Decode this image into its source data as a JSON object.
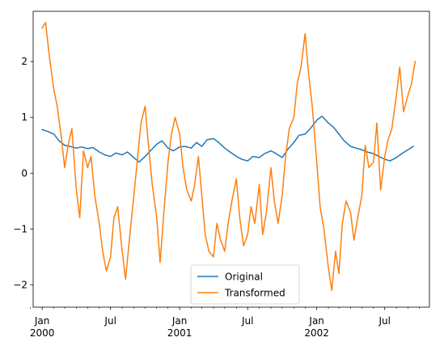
{
  "chart_data": {
    "type": "line",
    "title": "",
    "xlabel": "",
    "ylabel": "",
    "x_domain": [
      "1999-12-08",
      "2002-10-28"
    ],
    "ylim": [
      -2.4,
      2.9
    ],
    "grid": false,
    "legend_position": "lower center",
    "y_ticks": [
      -2,
      -1,
      0,
      1,
      2
    ],
    "y_tick_labels": [
      "−2",
      "−1",
      "0",
      "1",
      "2"
    ],
    "x_major_ticks": [
      {
        "date": "2000-01-01",
        "line1": "Jan",
        "line2": "2000"
      },
      {
        "date": "2000-07-01",
        "line1": "Jul",
        "line2": ""
      },
      {
        "date": "2001-01-01",
        "line1": "Jan",
        "line2": "2001"
      },
      {
        "date": "2001-07-01",
        "line1": "Jul",
        "line2": ""
      },
      {
        "date": "2002-01-01",
        "line1": "Jan",
        "line2": "2002"
      },
      {
        "date": "2002-07-01",
        "line1": "Jul",
        "line2": ""
      }
    ],
    "x_minor_ticks": [
      "1999-12-01",
      "2000-02-01",
      "2000-03-01",
      "2000-04-01",
      "2000-05-01",
      "2000-06-01",
      "2000-08-01",
      "2000-09-01",
      "2000-10-01",
      "2000-11-01",
      "2000-12-01",
      "2001-02-01",
      "2001-03-01",
      "2001-04-01",
      "2001-05-01",
      "2001-06-01",
      "2001-08-01",
      "2001-09-01",
      "2001-10-01",
      "2001-11-01",
      "2001-12-01",
      "2002-02-01",
      "2002-03-01",
      "2002-04-01",
      "2002-05-01",
      "2002-06-01",
      "2002-08-01",
      "2002-09-01",
      "2002-10-01"
    ],
    "series": [
      {
        "name": "Original",
        "color": "#1f77b4",
        "x": [
          "2000-01-01",
          "2000-01-15",
          "2000-02-01",
          "2000-02-15",
          "2000-03-01",
          "2000-03-15",
          "2000-04-01",
          "2000-04-15",
          "2000-05-01",
          "2000-05-15",
          "2000-06-01",
          "2000-06-15",
          "2000-07-01",
          "2000-07-15",
          "2000-08-01",
          "2000-08-15",
          "2000-09-01",
          "2000-09-15",
          "2000-10-01",
          "2000-10-15",
          "2000-11-01",
          "2000-11-15",
          "2000-12-01",
          "2000-12-15",
          "2001-01-01",
          "2001-01-15",
          "2001-02-01",
          "2001-02-15",
          "2001-03-01",
          "2001-03-15",
          "2001-04-01",
          "2001-04-15",
          "2001-05-01",
          "2001-05-15",
          "2001-06-01",
          "2001-06-15",
          "2001-07-01",
          "2001-07-15",
          "2001-08-01",
          "2001-08-15",
          "2001-09-01",
          "2001-09-15",
          "2001-10-01",
          "2001-10-15",
          "2001-11-01",
          "2001-11-15",
          "2001-12-01",
          "2001-12-15",
          "2002-01-01",
          "2002-01-15",
          "2002-02-01",
          "2002-02-15",
          "2002-03-01",
          "2002-03-15",
          "2002-04-01",
          "2002-04-15",
          "2002-05-01",
          "2002-05-15",
          "2002-06-01",
          "2002-06-15",
          "2002-07-01",
          "2002-07-15",
          "2002-08-01",
          "2002-08-15",
          "2002-09-01",
          "2002-09-15"
        ],
        "y": [
          0.78,
          0.75,
          0.7,
          0.58,
          0.5,
          0.48,
          0.45,
          0.47,
          0.44,
          0.46,
          0.38,
          0.33,
          0.3,
          0.36,
          0.33,
          0.38,
          0.28,
          0.2,
          0.3,
          0.4,
          0.52,
          0.58,
          0.45,
          0.4,
          0.47,
          0.48,
          0.45,
          0.55,
          0.48,
          0.6,
          0.62,
          0.55,
          0.45,
          0.38,
          0.3,
          0.25,
          0.22,
          0.3,
          0.28,
          0.35,
          0.4,
          0.35,
          0.28,
          0.42,
          0.55,
          0.68,
          0.7,
          0.8,
          0.95,
          1.02,
          0.9,
          0.82,
          0.7,
          0.58,
          0.48,
          0.45,
          0.42,
          0.38,
          0.35,
          0.3,
          0.25,
          0.22,
          0.28,
          0.35,
          0.42,
          0.48
        ]
      },
      {
        "name": "Transformed",
        "color": "#ff7f0e",
        "x": [
          "2000-01-01",
          "2000-01-10",
          "2000-01-20",
          "2000-02-01",
          "2000-02-10",
          "2000-02-20",
          "2000-03-01",
          "2000-03-10",
          "2000-03-20",
          "2000-04-01",
          "2000-04-10",
          "2000-04-20",
          "2000-05-01",
          "2000-05-10",
          "2000-05-20",
          "2000-06-01",
          "2000-06-10",
          "2000-06-20",
          "2000-07-01",
          "2000-07-10",
          "2000-07-20",
          "2000-08-01",
          "2000-08-10",
          "2000-08-20",
          "2000-09-01",
          "2000-09-10",
          "2000-09-20",
          "2000-10-01",
          "2000-10-10",
          "2000-10-20",
          "2000-11-01",
          "2000-11-10",
          "2000-11-20",
          "2000-12-01",
          "2000-12-10",
          "2000-12-20",
          "2001-01-01",
          "2001-01-10",
          "2001-01-20",
          "2001-02-01",
          "2001-02-10",
          "2001-02-20",
          "2001-03-01",
          "2001-03-10",
          "2001-03-20",
          "2001-04-01",
          "2001-04-10",
          "2001-04-20",
          "2001-05-01",
          "2001-05-10",
          "2001-05-20",
          "2001-06-01",
          "2001-06-10",
          "2001-06-20",
          "2001-07-01",
          "2001-07-10",
          "2001-07-20",
          "2001-08-01",
          "2001-08-10",
          "2001-08-20",
          "2001-09-01",
          "2001-09-10",
          "2001-09-20",
          "2001-10-01",
          "2001-10-10",
          "2001-10-20",
          "2001-11-01",
          "2001-11-10",
          "2001-11-20",
          "2001-12-01",
          "2001-12-10",
          "2001-12-20",
          "2002-01-01",
          "2002-01-10",
          "2002-01-20",
          "2002-02-01",
          "2002-02-10",
          "2002-02-20",
          "2002-03-01",
          "2002-03-10",
          "2002-03-20",
          "2002-04-01",
          "2002-04-10",
          "2002-04-20",
          "2002-05-01",
          "2002-05-10",
          "2002-05-20",
          "2002-06-01",
          "2002-06-10",
          "2002-06-20",
          "2002-07-01",
          "2002-07-10",
          "2002-07-20",
          "2002-08-01",
          "2002-08-10",
          "2002-08-20",
          "2002-09-01",
          "2002-09-10",
          "2002-09-20"
        ],
        "y": [
          2.6,
          2.7,
          2.1,
          1.5,
          1.2,
          0.7,
          0.1,
          0.5,
          0.8,
          -0.3,
          -0.8,
          0.4,
          0.1,
          0.3,
          -0.4,
          -0.9,
          -1.4,
          -1.75,
          -1.5,
          -0.8,
          -0.6,
          -1.4,
          -1.9,
          -1.2,
          -0.4,
          0.2,
          0.9,
          1.2,
          0.5,
          -0.2,
          -0.8,
          -1.6,
          -0.7,
          0.2,
          0.7,
          1.0,
          0.7,
          0.1,
          -0.3,
          -0.5,
          -0.2,
          0.3,
          -0.4,
          -1.1,
          -1.4,
          -1.5,
          -0.9,
          -1.2,
          -1.4,
          -0.9,
          -0.5,
          -0.1,
          -0.8,
          -1.3,
          -1.1,
          -0.6,
          -0.9,
          -0.2,
          -1.1,
          -0.7,
          0.1,
          -0.5,
          -0.9,
          -0.4,
          0.3,
          0.8,
          1.0,
          1.6,
          1.9,
          2.5,
          1.8,
          1.2,
          0.2,
          -0.6,
          -1.0,
          -1.7,
          -2.1,
          -1.4,
          -1.8,
          -0.9,
          -0.5,
          -0.7,
          -1.2,
          -0.8,
          -0.4,
          0.5,
          0.1,
          0.2,
          0.9,
          -0.3,
          0.3,
          0.6,
          0.8,
          1.4,
          1.9,
          1.1,
          1.4,
          1.6,
          2.0
        ]
      }
    ]
  }
}
